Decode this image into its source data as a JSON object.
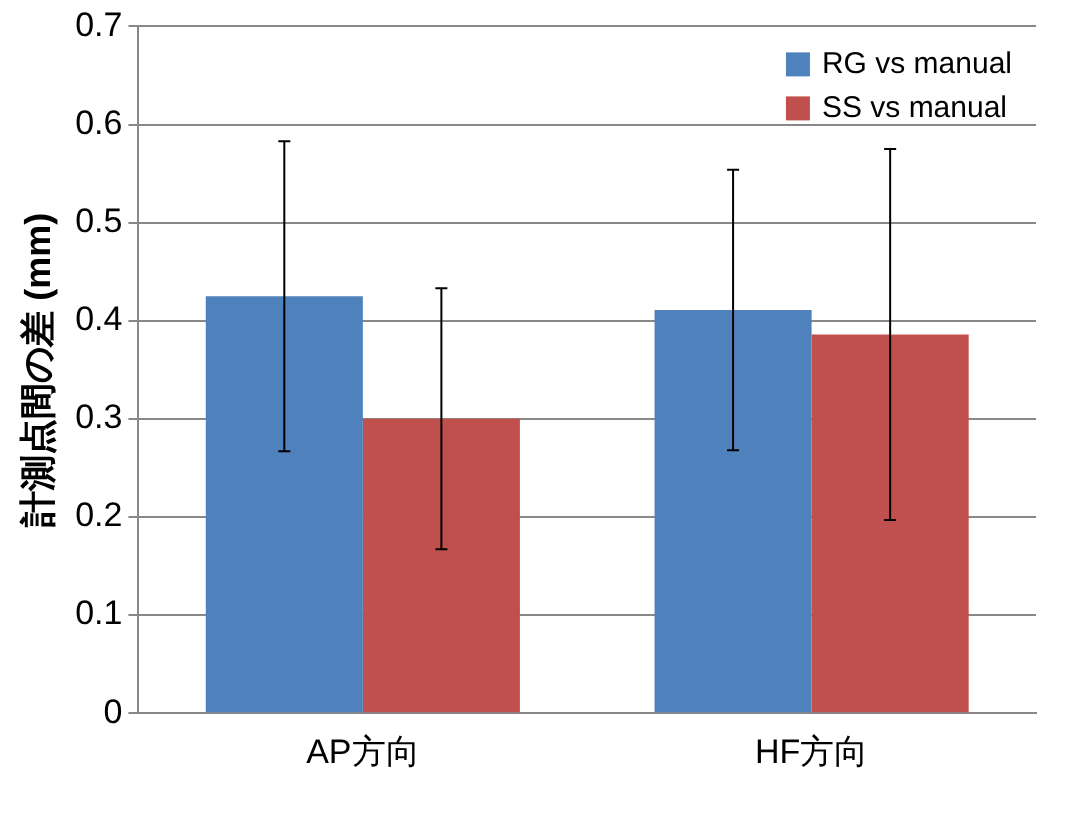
{
  "chart_data": {
    "type": "bar",
    "ylabel": "計測点間の差 (mm)",
    "categories": [
      "AP方向",
      "HF方向"
    ],
    "series": [
      {
        "name": "RG vs manual",
        "color": "#4f81bd",
        "values": [
          0.425,
          0.411
        ],
        "errors": [
          0.158,
          0.143
        ]
      },
      {
        "name": "SS vs manual",
        "color": "#c0504d",
        "values": [
          0.3,
          0.386
        ],
        "errors": [
          0.133,
          0.189
        ]
      }
    ],
    "ylim": [
      0,
      0.7
    ],
    "yticks": [
      0,
      0.1,
      0.2,
      0.3,
      0.4,
      0.5,
      0.6,
      0.7
    ],
    "grid": "y",
    "legend": "top right"
  }
}
